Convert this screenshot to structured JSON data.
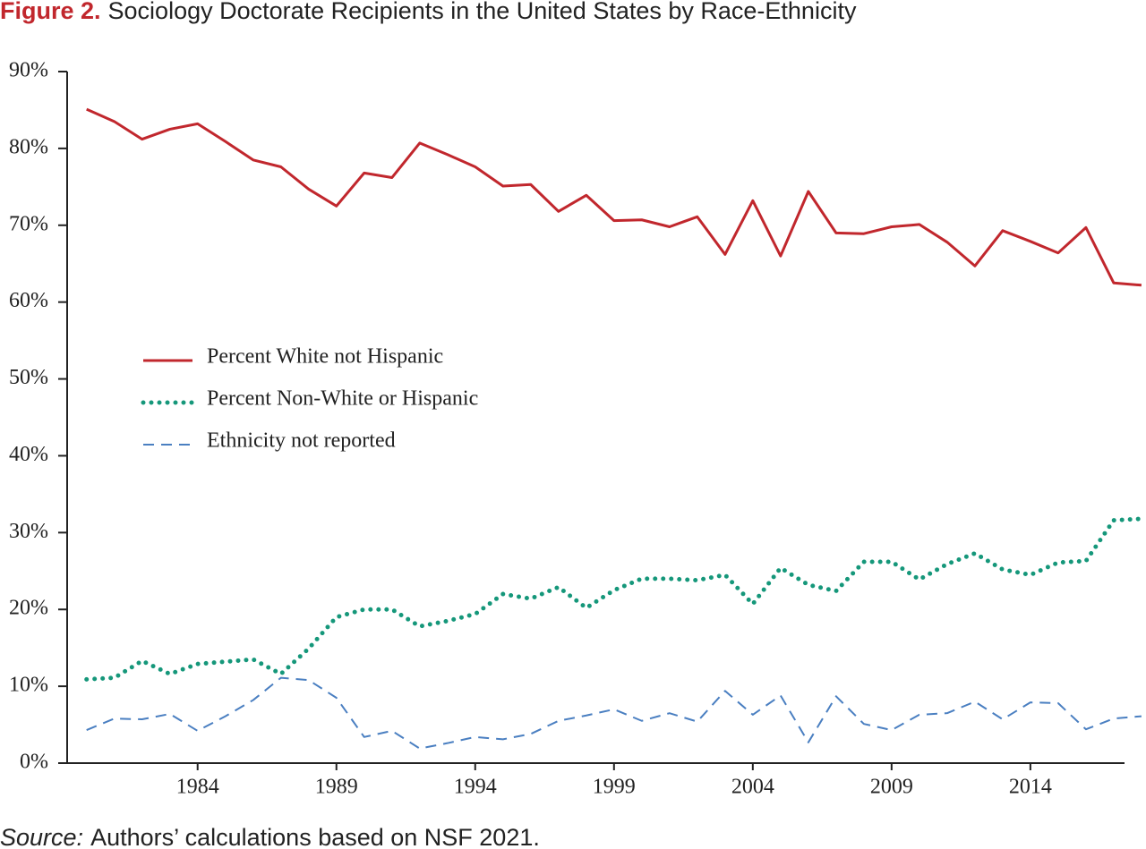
{
  "chart_data": {
    "type": "line",
    "figure_label": "Figure 2.",
    "title": "Sociology Doctorate Recipients in the United States by Race-Ethnicity",
    "note_label": "Source:",
    "note": "Authors’ calculations based on NSF 2021.",
    "x": [
      1980,
      1981,
      1982,
      1983,
      1984,
      1985,
      1986,
      1987,
      1988,
      1989,
      1990,
      1991,
      1992,
      1993,
      1994,
      1995,
      1996,
      1997,
      1998,
      1999,
      2000,
      2001,
      2002,
      2003,
      2004,
      2005,
      2006,
      2007,
      2008,
      2009,
      2010,
      2011,
      2012,
      2013,
      2014,
      2015,
      2016,
      2017,
      2018
    ],
    "xlim": [
      1979.3,
      2018.1
    ],
    "xticks": [
      1984,
      1989,
      1994,
      1999,
      2004,
      2009,
      2014
    ],
    "ylim": [
      0,
      90
    ],
    "yticks": [
      {
        "value": 0,
        "label": "0%"
      },
      {
        "value": 10,
        "label": "10%"
      },
      {
        "value": 20,
        "label": "20%"
      },
      {
        "value": 30,
        "label": "30%"
      },
      {
        "value": 40,
        "label": "40%"
      },
      {
        "value": 50,
        "label": "50%"
      },
      {
        "value": 60,
        "label": "60%"
      },
      {
        "value": 70,
        "label": "70%"
      },
      {
        "value": 80,
        "label": "80%"
      },
      {
        "value": 90,
        "label": "90%"
      }
    ],
    "legend": "left",
    "series": [
      {
        "name": "Percent White not Hispanic",
        "color": "#c1272d",
        "style": "solid",
        "values": [
          85.1,
          83.5,
          81.2,
          82.5,
          83.2,
          80.9,
          78.5,
          77.6,
          74.7,
          72.5,
          76.8,
          76.2,
          80.7,
          79.2,
          77.6,
          75.1,
          75.3,
          71.8,
          73.9,
          70.6,
          70.7,
          69.8,
          71.1,
          66.2,
          73.2,
          66.0,
          74.4,
          69.0,
          68.9,
          69.8,
          70.1,
          67.8,
          64.7,
          69.3,
          67.9,
          66.4,
          69.7,
          62.5,
          62.2
        ]
      },
      {
        "name": "Percent Non-White or Hispanic",
        "color": "#15977a",
        "style": "dotted",
        "values": [
          10.9,
          11.1,
          13.3,
          11.6,
          12.9,
          13.2,
          13.5,
          11.6,
          14.9,
          19.0,
          20.0,
          20.0,
          17.8,
          18.5,
          19.4,
          22.0,
          21.4,
          22.9,
          20.2,
          22.5,
          24.0,
          24.0,
          23.8,
          24.5,
          20.7,
          25.4,
          23.2,
          22.4,
          26.2,
          26.2,
          23.9,
          25.9,
          27.3,
          25.2,
          24.5,
          26.1,
          26.3,
          31.6,
          31.8
        ]
      },
      {
        "name": "Ethnicity not reported",
        "color": "#4a7fc1",
        "style": "dashed",
        "values": [
          4.3,
          5.8,
          5.7,
          6.4,
          4.2,
          6.1,
          8.2,
          11.1,
          10.8,
          8.5,
          3.4,
          4.2,
          1.9,
          2.6,
          3.4,
          3.1,
          3.8,
          5.5,
          6.2,
          7.0,
          5.5,
          6.5,
          5.4,
          9.4,
          6.3,
          8.8,
          2.7,
          8.7,
          5.1,
          4.3,
          6.3,
          6.5,
          8.0,
          5.7,
          7.9,
          7.8,
          4.4,
          5.8,
          6.1
        ]
      }
    ]
  }
}
